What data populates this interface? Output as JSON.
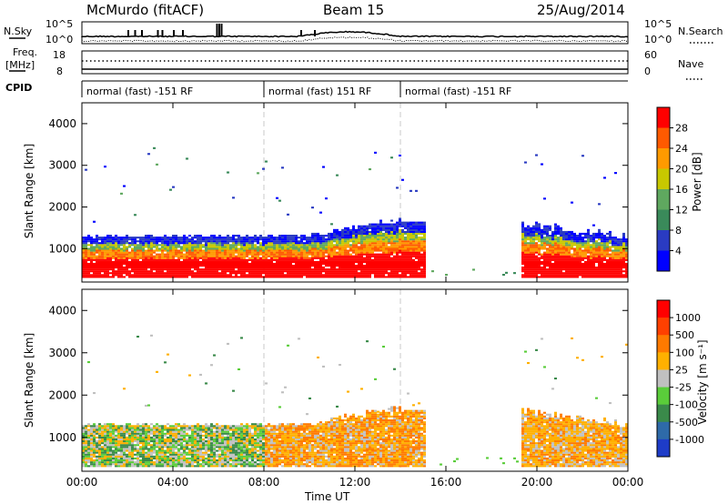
{
  "header": {
    "station": "McMurdo (fitACF)",
    "beam": "Beam 15",
    "date": "25/Aug/2014"
  },
  "noise_panel": {
    "left_label": "N.Sky",
    "right_label": "N.Search",
    "right_label_style": "dotted",
    "left_ticks": [
      "10^5",
      "10^0"
    ],
    "right_ticks": [
      "10^5",
      "10^0"
    ]
  },
  "freq_panel": {
    "left_label_top": "Freq.",
    "left_label_unit": "[MHz]",
    "left_ticks": [
      "18",
      "8"
    ],
    "right_label": "Nave",
    "right_label_style": "dotted",
    "right_ticks": [
      "60",
      "0"
    ]
  },
  "cpid_panel": {
    "label": "CPID",
    "segments": [
      {
        "start_hour": 0,
        "end_hour": 8,
        "text": "normal (fast) -151 RF"
      },
      {
        "start_hour": 8,
        "end_hour": 14,
        "text": "normal (fast) 151 RF"
      },
      {
        "start_hour": 14,
        "end_hour": 24,
        "text": "normal (fast) -151 RF"
      }
    ]
  },
  "time_axis": {
    "label": "Time UT",
    "ticks": [
      "00:00",
      "04:00",
      "08:00",
      "12:00",
      "16:00",
      "20:00",
      "00:00"
    ]
  },
  "chart_data": [
    {
      "type": "heatmap",
      "panel": "power",
      "ylabel": "Slant Range [km]",
      "yticks": [
        1000,
        2000,
        3000,
        4000
      ],
      "ylim": [
        200,
        4500
      ],
      "xlim_hours": [
        0,
        24
      ],
      "colorbar_label": "Power [dB]",
      "colorbar_ticks": [
        4,
        8,
        12,
        16,
        20,
        24,
        28
      ],
      "colorbar_colors": [
        "#0000ff",
        "#2a3bc2",
        "#3a8a5a",
        "#5fa85f",
        "#c8c800",
        "#ff9a00",
        "#ff5a00",
        "#ff0000"
      ],
      "cpid_boundaries_hours": [
        8,
        14
      ]
    },
    {
      "type": "heatmap",
      "panel": "velocity",
      "ylabel": "Slant Range [km]",
      "yticks": [
        1000,
        2000,
        3000,
        4000
      ],
      "ylim": [
        200,
        4500
      ],
      "xlim_hours": [
        0,
        24
      ],
      "colorbar_label": "Velocity [m s⁻¹]",
      "colorbar_ticks": [
        "1000",
        "500",
        "100",
        "25",
        "-25",
        "-100",
        "-500",
        "-1000"
      ],
      "colorbar_colors": [
        "#1e3cc8",
        "#2e6aa8",
        "#3a8a4a",
        "#5acd3a",
        "#c0c0c0",
        "#ffb000",
        "#ff7a00",
        "#ff4000",
        "#ff0000"
      ],
      "cpid_boundaries_hours": [
        8,
        14
      ]
    }
  ]
}
